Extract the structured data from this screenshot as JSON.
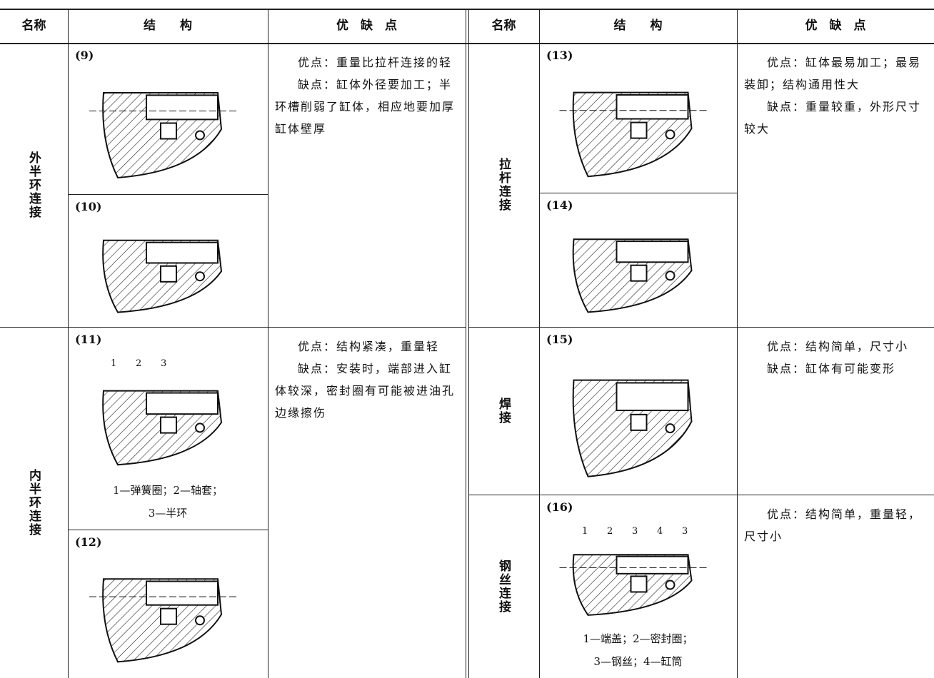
{
  "header": {
    "left": {
      "name": "名称",
      "structure": "结　　构",
      "pros": "优　缺　点"
    },
    "right": {
      "name": "名称",
      "structure": "结　　构",
      "pros": "优　缺　点"
    }
  },
  "left_sections": [
    {
      "name": "外半环连接",
      "items": [
        {
          "label": "(9)"
        },
        {
          "label": "(10)"
        }
      ],
      "notes": [
        "优点：重量比拉杆连接的轻",
        "缺点：缸体外径要加工；半环槽削弱了缸体，相应地要加厚缸体壁厚"
      ]
    },
    {
      "name": "内半环连接",
      "items": [
        {
          "label": "(11)",
          "callouts": [
            "1",
            "2",
            "3"
          ],
          "caption": [
            "1—弹簧圈；2—轴套；",
            "3—半环"
          ]
        },
        {
          "label": "(12)"
        }
      ],
      "notes": [
        "优点：结构紧凑，重量轻",
        "缺点：安装时，端部进入缸体较深，密封圈有可能被进油孔边缘擦伤"
      ]
    }
  ],
  "right_sections": [
    {
      "name": "拉杆连接",
      "items": [
        {
          "label": "(13)"
        },
        {
          "label": "(14)"
        }
      ],
      "notes": [
        "优点：缸体最易加工；最易装卸；结构通用性大",
        "缺点：重量较重，外形尺寸较大"
      ]
    },
    {
      "name": "焊接",
      "items": [
        {
          "label": "(15)"
        }
      ],
      "notes": [
        "优点：结构简单，尺寸小",
        "缺点：缸体有可能变形"
      ]
    },
    {
      "name": "钢丝连接",
      "items": [
        {
          "label": "(16)",
          "callouts": [
            "1",
            "2",
            "3",
            "4",
            "3"
          ],
          "caption": [
            "1—端盖；2—密封圈；",
            "3—钢丝；4—缸筒"
          ]
        }
      ],
      "notes": [
        "优点：结构简单，重量轻，尺寸小"
      ]
    }
  ]
}
